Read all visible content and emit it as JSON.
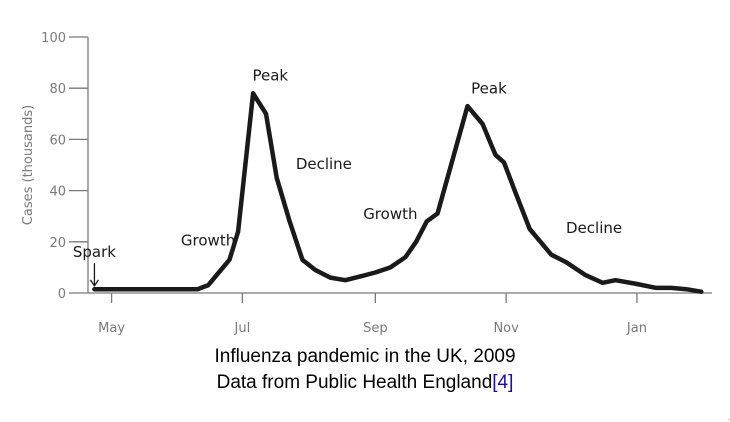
{
  "chart_data": {
    "type": "line",
    "title": "",
    "xlabel": "",
    "ylabel": "Cases (thousands)",
    "ylim": [
      0,
      100
    ],
    "yticks": [
      0,
      20,
      40,
      60,
      80,
      100
    ],
    "x_tick_labels": [
      "May",
      "Jul",
      "Sep",
      "Nov",
      "Jan"
    ],
    "x_tick_dates": [
      "2009-05-01",
      "2009-07-01",
      "2009-09-01",
      "2009-11-01",
      "2010-01-01"
    ],
    "xlim": [
      "2009-04-20",
      "2010-02-05"
    ],
    "grid": false,
    "legend": "none",
    "line_color": "#1a1a1a",
    "axis_color": "#7a7a7a",
    "series": [
      {
        "x": [
          "2009-04-23",
          "2009-05-01",
          "2009-05-10",
          "2009-05-20",
          "2009-05-31",
          "2009-06-10",
          "2009-06-15",
          "2009-06-20",
          "2009-06-25",
          "2009-06-29",
          "2009-07-06",
          "2009-07-12",
          "2009-07-17",
          "2009-07-23",
          "2009-07-29",
          "2009-08-04",
          "2009-08-11",
          "2009-08-18",
          "2009-08-25",
          "2009-09-01",
          "2009-09-08",
          "2009-09-15",
          "2009-09-20",
          "2009-09-25",
          "2009-09-30",
          "2009-10-07",
          "2009-10-14",
          "2009-10-21",
          "2009-10-27",
          "2009-10-31",
          "2009-11-05",
          "2009-11-12",
          "2009-11-17",
          "2009-11-22",
          "2009-11-29",
          "2009-12-08",
          "2009-12-16",
          "2009-12-22",
          "2010-01-01",
          "2010-01-10",
          "2010-01-17",
          "2010-01-24",
          "2010-01-31"
        ],
        "y": [
          1.5,
          1.5,
          1.5,
          1.5,
          1.5,
          1.5,
          3,
          8,
          13,
          24,
          78,
          70,
          45,
          28,
          13,
          9,
          6,
          5,
          6.5,
          8,
          10,
          14,
          20,
          28,
          31,
          52,
          73,
          66,
          54,
          51,
          40,
          25,
          20,
          15,
          12,
          7,
          4,
          5,
          3.5,
          2,
          2,
          1.5,
          0.5
        ]
      }
    ],
    "annotations": [
      {
        "text": "Spark",
        "x": "2009-04-23",
        "y": 14,
        "arrow_to_y": 2
      },
      {
        "text": "Growth",
        "x": "2009-06-15",
        "y": 18.5
      },
      {
        "text": "Peak",
        "x": "2009-07-14",
        "y": 83
      },
      {
        "text": "Decline",
        "x": "2009-08-08",
        "y": 48.5
      },
      {
        "text": "Growth",
        "x": "2009-09-08",
        "y": 29
      },
      {
        "text": "Peak",
        "x": "2009-10-24",
        "y": 78
      },
      {
        "text": "Decline",
        "x": "2009-12-12",
        "y": 23.5
      }
    ]
  },
  "caption": {
    "line1": "Influenza pandemic in the UK, 2009",
    "line2": "Data from Public Health England",
    "ref": "[4]"
  },
  "corner_mark": "."
}
